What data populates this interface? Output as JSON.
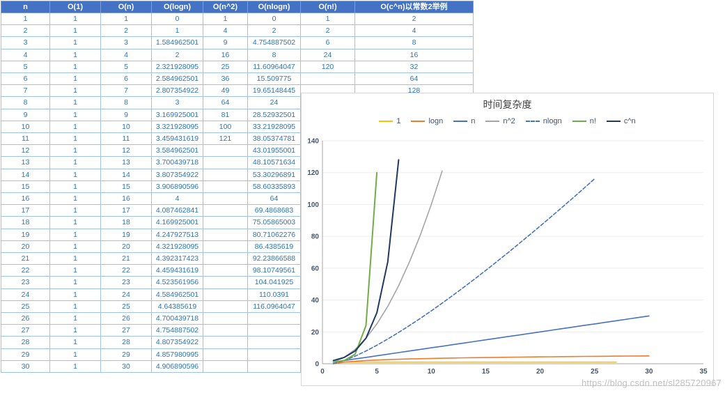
{
  "table": {
    "headers": [
      "n",
      "O(1)",
      "O(n)",
      "O(logn)",
      "O(n^2)",
      "O(nlogn)",
      "O(n!)",
      "O(c^n)以常数2举例"
    ],
    "rows": [
      [
        "1",
        "1",
        "1",
        "0",
        "1",
        "0",
        "1",
        "2"
      ],
      [
        "2",
        "1",
        "2",
        "1",
        "4",
        "2",
        "2",
        "4"
      ],
      [
        "3",
        "1",
        "3",
        "1.584962501",
        "9",
        "4.754887502",
        "6",
        "8"
      ],
      [
        "4",
        "1",
        "4",
        "2",
        "16",
        "8",
        "24",
        "16"
      ],
      [
        "5",
        "1",
        "5",
        "2.321928095",
        "25",
        "11.60964047",
        "120",
        "32"
      ],
      [
        "6",
        "1",
        "6",
        "2.584962501",
        "36",
        "15.509775",
        "",
        "64"
      ],
      [
        "7",
        "1",
        "7",
        "2.807354922",
        "49",
        "19.65148445",
        "",
        "128"
      ],
      [
        "8",
        "1",
        "8",
        "3",
        "64",
        "24",
        "",
        ""
      ],
      [
        "9",
        "1",
        "9",
        "3.169925001",
        "81",
        "28.52932501",
        "",
        ""
      ],
      [
        "10",
        "1",
        "10",
        "3.321928095",
        "100",
        "33.21928095",
        "",
        ""
      ],
      [
        "11",
        "1",
        "11",
        "3.459431619",
        "121",
        "38.05374781",
        "",
        ""
      ],
      [
        "12",
        "1",
        "12",
        "3.584962501",
        "",
        "43.01955001",
        "",
        ""
      ],
      [
        "13",
        "1",
        "13",
        "3.700439718",
        "",
        "48.10571634",
        "",
        ""
      ],
      [
        "14",
        "1",
        "14",
        "3.807354922",
        "",
        "53.30296891",
        "",
        ""
      ],
      [
        "15",
        "1",
        "15",
        "3.906890596",
        "",
        "58.60335893",
        "",
        ""
      ],
      [
        "16",
        "1",
        "16",
        "4",
        "",
        "64",
        "",
        ""
      ],
      [
        "17",
        "1",
        "17",
        "4.087462841",
        "",
        "69.4868683",
        "",
        ""
      ],
      [
        "18",
        "1",
        "18",
        "4.169925001",
        "",
        "75.05865003",
        "",
        ""
      ],
      [
        "19",
        "1",
        "19",
        "4.247927513",
        "",
        "80.71062276",
        "",
        ""
      ],
      [
        "20",
        "1",
        "20",
        "4.321928095",
        "",
        "86.4385619",
        "",
        ""
      ],
      [
        "21",
        "1",
        "21",
        "4.392317423",
        "",
        "92.23866588",
        "",
        ""
      ],
      [
        "22",
        "1",
        "22",
        "4.459431619",
        "",
        "98.10749561",
        "",
        ""
      ],
      [
        "23",
        "1",
        "23",
        "4.523561956",
        "",
        "104.041925",
        "",
        ""
      ],
      [
        "24",
        "1",
        "24",
        "4.584962501",
        "",
        "110.0391",
        "",
        ""
      ],
      [
        "25",
        "1",
        "25",
        "4.64385619",
        "",
        "116.0964047",
        "",
        ""
      ],
      [
        "26",
        "1",
        "26",
        "4.700439718",
        "",
        "",
        "",
        ""
      ],
      [
        "27",
        "1",
        "27",
        "4.754887502",
        "",
        "",
        "",
        ""
      ],
      [
        "28",
        "1",
        "28",
        "4.807354922",
        "",
        "",
        "",
        ""
      ],
      [
        "29",
        "1",
        "29",
        "4.857980995",
        "",
        "",
        "",
        ""
      ],
      [
        "30",
        "1",
        "30",
        "4.906890596",
        "",
        "",
        "",
        ""
      ]
    ]
  },
  "chart_data": {
    "type": "line",
    "title": "时间复杂度",
    "xlabel": "",
    "ylabel": "",
    "xlim": [
      0,
      35
    ],
    "ylim": [
      0,
      140
    ],
    "x_ticks": [
      0,
      5,
      10,
      15,
      20,
      25,
      30,
      35
    ],
    "y_ticks": [
      0,
      20,
      40,
      60,
      80,
      100,
      120,
      140
    ],
    "legend_position": "top",
    "grid": "horizontal-faint",
    "series": [
      {
        "name": "1",
        "color": "#FFC000",
        "dash": false,
        "x": [
          1,
          2,
          3,
          4,
          5,
          6,
          7,
          8,
          9,
          10,
          11,
          12,
          13,
          14,
          15,
          16,
          17,
          18,
          19,
          20,
          21,
          22,
          23,
          24,
          25,
          26,
          27
        ],
        "y": [
          1,
          1,
          1,
          1,
          1,
          1,
          1,
          1,
          1,
          1,
          1,
          1,
          1,
          1,
          1,
          1,
          1,
          1,
          1,
          1,
          1,
          1,
          1,
          1,
          1,
          1,
          1
        ]
      },
      {
        "name": "logn",
        "color": "#ED7D31",
        "dash": false,
        "x": [
          1,
          2,
          3,
          4,
          5,
          6,
          7,
          8,
          9,
          10,
          11,
          12,
          13,
          14,
          15,
          16,
          17,
          18,
          19,
          20,
          21,
          22,
          23,
          24,
          25,
          26,
          27,
          28,
          29,
          30
        ],
        "y": [
          0,
          1,
          1.585,
          2,
          2.322,
          2.585,
          2.807,
          3,
          3.17,
          3.322,
          3.459,
          3.585,
          3.7,
          3.807,
          3.907,
          4,
          4.087,
          4.17,
          4.248,
          4.322,
          4.392,
          4.459,
          4.524,
          4.585,
          4.644,
          4.7,
          4.755,
          4.807,
          4.858,
          4.907
        ]
      },
      {
        "name": "n",
        "color": "#4472C4",
        "dash": false,
        "x": [
          1,
          2,
          3,
          4,
          5,
          6,
          7,
          8,
          9,
          10,
          11,
          12,
          13,
          14,
          15,
          16,
          17,
          18,
          19,
          20,
          21,
          22,
          23,
          24,
          25,
          26,
          27,
          28,
          29,
          30
        ],
        "y": [
          1,
          2,
          3,
          4,
          5,
          6,
          7,
          8,
          9,
          10,
          11,
          12,
          13,
          14,
          15,
          16,
          17,
          18,
          19,
          20,
          21,
          22,
          23,
          24,
          25,
          26,
          27,
          28,
          29,
          30
        ]
      },
      {
        "name": "n^2",
        "color": "#A5A5A5",
        "dash": false,
        "x": [
          1,
          2,
          3,
          4,
          5,
          6,
          7,
          8,
          9,
          10,
          11
        ],
        "y": [
          1,
          4,
          9,
          16,
          25,
          36,
          49,
          64,
          81,
          100,
          121
        ]
      },
      {
        "name": "nlogn",
        "color": "#4472C4",
        "dash": true,
        "x": [
          1,
          2,
          3,
          4,
          5,
          6,
          7,
          8,
          9,
          10,
          11,
          12,
          13,
          14,
          15,
          16,
          17,
          18,
          19,
          20,
          21,
          22,
          23,
          24,
          25
        ],
        "y": [
          0,
          2,
          4.755,
          8,
          11.61,
          15.51,
          19.651,
          24,
          28.529,
          33.219,
          38.054,
          43.02,
          48.106,
          53.303,
          58.603,
          64,
          69.487,
          75.059,
          80.711,
          86.439,
          92.239,
          98.107,
          104.042,
          110.039,
          116.096
        ]
      },
      {
        "name": "n!",
        "color": "#70AD47",
        "dash": false,
        "x": [
          1,
          2,
          3,
          4,
          5
        ],
        "y": [
          1,
          2,
          6,
          24,
          120
        ]
      },
      {
        "name": "c^n",
        "color": "#1F3864",
        "dash": false,
        "x": [
          1,
          2,
          3,
          4,
          5,
          6,
          7
        ],
        "y": [
          2,
          4,
          8,
          16,
          32,
          64,
          128
        ]
      }
    ]
  },
  "watermark": "https://blog.csdn.net/sl285720967",
  "colors": {
    "header_bg": "#4472C4",
    "header_text": "#FFFFFF",
    "cell_text": "#2E75B6",
    "grid_border": "#9DC3E6",
    "axis_line": "#A6A6A6"
  }
}
